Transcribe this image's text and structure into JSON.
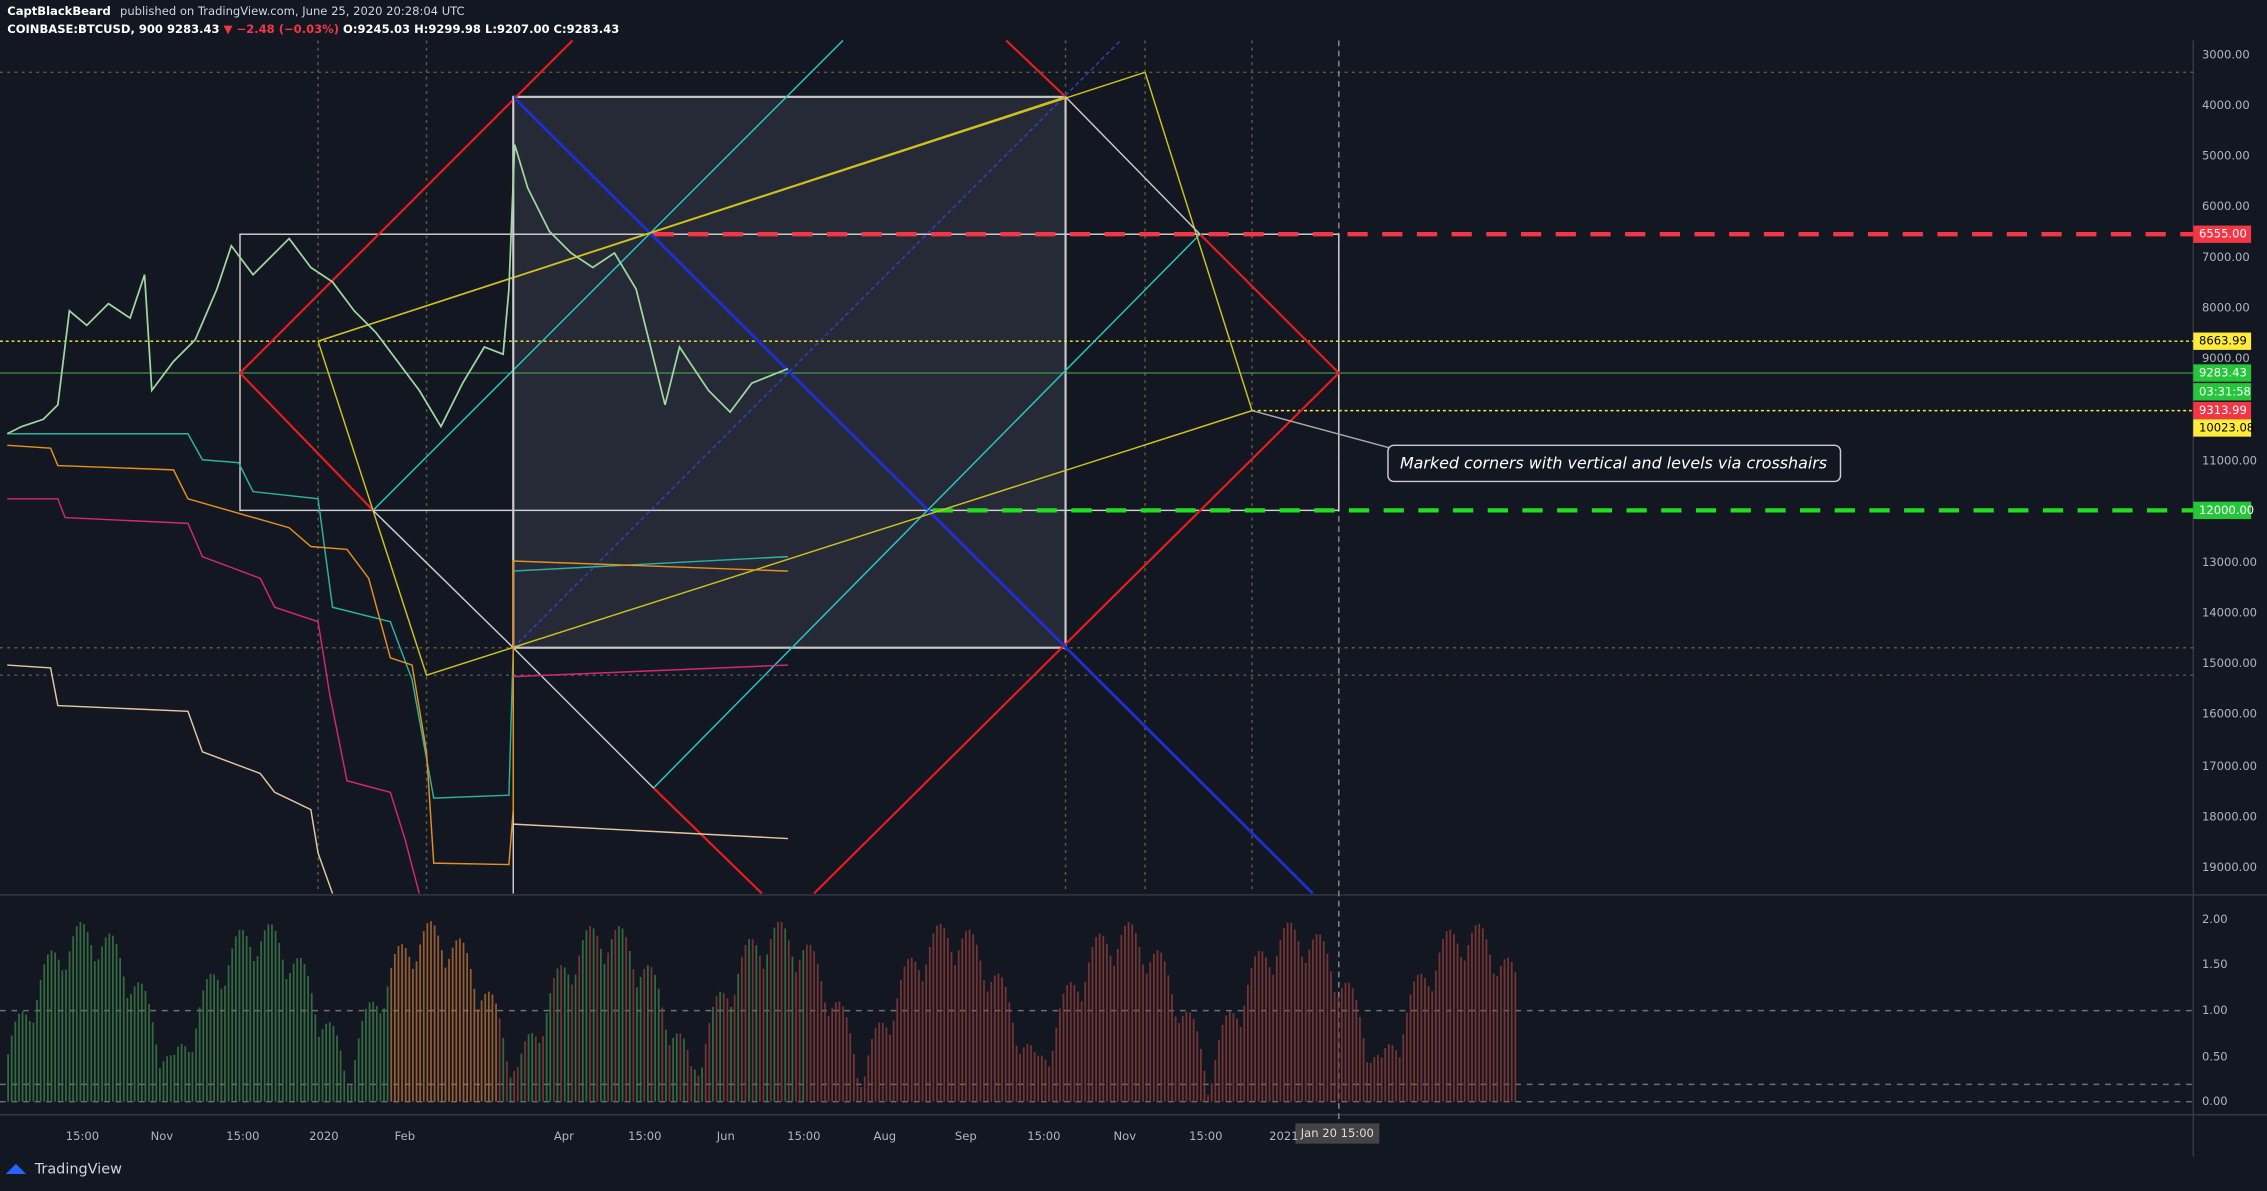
{
  "header": {
    "author": "CaptBlackBeard",
    "published": "published on TradingView.com, June 25, 2020 20:28:04 UTC",
    "symbol": "COINBASE:BTCUSD, 900",
    "last": "9283.43",
    "change": "▼ −2.48 (−0.03%)",
    "ohlc": "O:9245.03 H:9299.98 L:9207.00 C:9283.43"
  },
  "price_axis": {
    "labels": [
      "3000.00",
      "4000.00",
      "5000.00",
      "6000.00",
      "7000.00",
      "8000.00",
      "9000.00",
      "11000.00",
      "13000.00",
      "14000.00",
      "15000.00",
      "16000.00",
      "17000.00",
      "18000.00",
      "19000.00"
    ]
  },
  "price_tags": [
    {
      "label": "6555.00",
      "color": "#f23645"
    },
    {
      "label": "8663.99",
      "color": "#ffeb3b"
    },
    {
      "label": "9283.43",
      "color": "#26c63a"
    },
    {
      "label": "03:31:58",
      "color": "#26c63a"
    },
    {
      "label": "9313.99",
      "color": "#f23645"
    },
    {
      "label": "10023.08",
      "color": "#ffeb3b"
    },
    {
      "label": "12000.00",
      "color": "#26c63a"
    }
  ],
  "indicator_axis": {
    "labels": [
      "2.00",
      "1.50",
      "1.00",
      "0.50",
      "0.00"
    ]
  },
  "time_axis": {
    "labels": [
      "15:00",
      "Nov",
      "15:00",
      "2020",
      "Feb",
      "Apr",
      "15:00",
      "Jun",
      "15:00",
      "Aug",
      "Sep",
      "15:00",
      "Nov",
      "15:00",
      "2021"
    ],
    "crosshair": "Jan 20   15:00"
  },
  "annotation": "Marked corners with vertical and levels via crosshairs",
  "footer": {
    "brand": "TradingView"
  }
}
